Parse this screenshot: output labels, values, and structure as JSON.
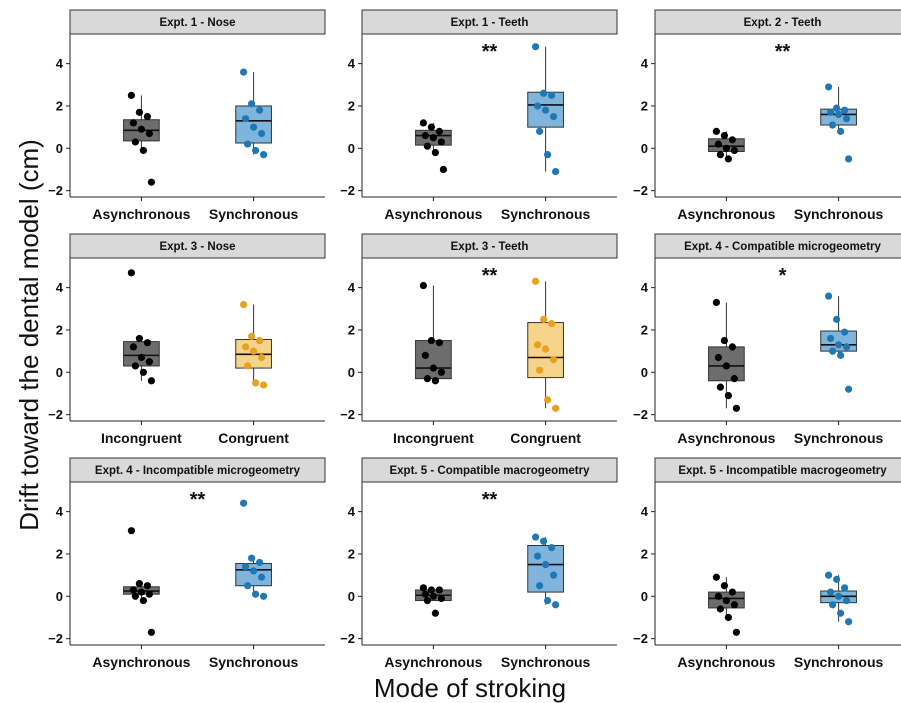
{
  "figure": {
    "ylabel": "Drift toward the dental model (cm)",
    "xlabel": "Mode of stroking"
  },
  "colors": {
    "control_box": "#6d6d6d",
    "control_point": "#000000",
    "sync_box": "#7fb5dc",
    "sync_point": "#1f78b4",
    "congruent_box": "#f5d48a",
    "congruent_point": "#e8a020",
    "strip_fill": "#d9d9d9"
  },
  "chart_data": [
    {
      "type": "box",
      "title": "Expt. 1 - Nose",
      "significance": "",
      "yticks": [
        -2,
        0,
        2,
        4
      ],
      "ylim": [
        -2.3,
        5.4
      ],
      "categories": [
        "Asynchronous",
        "Synchronous"
      ],
      "series": [
        {
          "name": "Asynchronous",
          "color": "control",
          "box": {
            "min": -0.1,
            "q1": 0.35,
            "median": 0.85,
            "q3": 1.35,
            "max": 2.5
          },
          "points": [
            2.5,
            1.7,
            1.5,
            1.2,
            0.9,
            0.7,
            0.3,
            -0.1,
            -1.6
          ]
        },
        {
          "name": "Synchronous",
          "color": "sync",
          "box": {
            "min": -0.3,
            "q1": 0.25,
            "median": 1.3,
            "q3": 2.0,
            "max": 3.6
          },
          "points": [
            3.6,
            2.1,
            1.8,
            1.4,
            1.0,
            0.7,
            0.2,
            -0.1,
            -0.3
          ]
        }
      ]
    },
    {
      "type": "box",
      "title": "Expt. 1 - Teeth",
      "significance": "**",
      "yticks": [
        -2,
        0,
        2,
        4
      ],
      "ylim": [
        -2.3,
        5.4
      ],
      "categories": [
        "Asynchronous",
        "Synchronous"
      ],
      "series": [
        {
          "name": "Asynchronous",
          "color": "control",
          "box": {
            "min": -0.2,
            "q1": 0.15,
            "median": 0.6,
            "q3": 0.85,
            "max": 1.2
          },
          "points": [
            1.2,
            1.0,
            0.8,
            0.6,
            0.5,
            0.3,
            0.1,
            -0.2,
            -1.0
          ]
        },
        {
          "name": "Synchronous",
          "color": "sync",
          "box": {
            "min": -1.1,
            "q1": 1.0,
            "median": 2.05,
            "q3": 2.65,
            "max": 4.8
          },
          "points": [
            4.8,
            2.6,
            2.5,
            2.0,
            1.8,
            1.5,
            0.8,
            -0.3,
            -1.1
          ]
        }
      ]
    },
    {
      "type": "box",
      "title": "Expt. 2 - Teeth",
      "significance": "**",
      "yticks": [
        -2,
        0,
        2,
        4
      ],
      "ylim": [
        -2.3,
        5.4
      ],
      "categories": [
        "Asynchronous",
        "Synchronous"
      ],
      "series": [
        {
          "name": "Asynchronous",
          "color": "control",
          "box": {
            "min": -0.5,
            "q1": -0.15,
            "median": 0.1,
            "q3": 0.45,
            "max": 0.8
          },
          "points": [
            0.8,
            0.6,
            0.4,
            0.2,
            0.0,
            -0.1,
            -0.3,
            -0.5
          ]
        },
        {
          "name": "Synchronous",
          "color": "sync",
          "box": {
            "min": 0.8,
            "q1": 1.1,
            "median": 1.6,
            "q3": 1.85,
            "max": 2.9
          },
          "points": [
            2.9,
            1.9,
            1.8,
            1.7,
            1.6,
            1.4,
            1.1,
            0.8,
            -0.5
          ]
        }
      ]
    },
    {
      "type": "box",
      "title": "Expt. 3 - Nose",
      "significance": "",
      "yticks": [
        -2,
        0,
        2,
        4
      ],
      "ylim": [
        -2.3,
        5.4
      ],
      "categories": [
        "Incongruent",
        "Congruent"
      ],
      "series": [
        {
          "name": "Incongruent",
          "color": "control",
          "box": {
            "min": -0.4,
            "q1": 0.3,
            "median": 0.8,
            "q3": 1.45,
            "max": 1.6
          },
          "points": [
            4.7,
            1.6,
            1.4,
            1.2,
            0.7,
            0.5,
            0.3,
            0.0,
            -0.4
          ]
        },
        {
          "name": "Congruent",
          "color": "congruent",
          "box": {
            "min": -0.6,
            "q1": 0.2,
            "median": 0.85,
            "q3": 1.55,
            "max": 3.2
          },
          "points": [
            3.2,
            1.7,
            1.5,
            1.2,
            1.0,
            0.7,
            0.3,
            -0.5,
            -0.6
          ]
        }
      ]
    },
    {
      "type": "box",
      "title": "Expt. 3 - Teeth",
      "significance": "**",
      "yticks": [
        -2,
        0,
        2,
        4
      ],
      "ylim": [
        -2.3,
        5.4
      ],
      "categories": [
        "Incongruent",
        "Congruent"
      ],
      "series": [
        {
          "name": "Incongruent",
          "color": "control",
          "box": {
            "min": -0.4,
            "q1": -0.3,
            "median": 0.2,
            "q3": 1.5,
            "max": 4.1
          },
          "points": [
            4.1,
            1.5,
            1.4,
            0.8,
            0.2,
            0.0,
            -0.3,
            -0.4
          ]
        },
        {
          "name": "Congruent",
          "color": "congruent",
          "box": {
            "min": -1.7,
            "q1": -0.25,
            "median": 0.7,
            "q3": 2.35,
            "max": 4.3
          },
          "points": [
            4.3,
            2.5,
            2.3,
            1.3,
            1.1,
            0.6,
            0.1,
            -1.3,
            -1.7
          ]
        }
      ]
    },
    {
      "type": "box",
      "title": "Expt. 4 - Compatible microgeometry",
      "significance": "*",
      "yticks": [
        -2,
        0,
        2,
        4
      ],
      "ylim": [
        -2.3,
        5.4
      ],
      "categories": [
        "Asynchronous",
        "Synchronous"
      ],
      "series": [
        {
          "name": "Asynchronous",
          "color": "control",
          "box": {
            "min": -1.7,
            "q1": -0.4,
            "median": 0.3,
            "q3": 1.2,
            "max": 3.3
          },
          "points": [
            3.3,
            1.5,
            1.2,
            0.7,
            0.3,
            -0.3,
            -0.7,
            -1.1,
            -1.7
          ]
        },
        {
          "name": "Synchronous",
          "color": "sync",
          "box": {
            "min": 0.8,
            "q1": 1.0,
            "median": 1.3,
            "q3": 1.95,
            "max": 3.6
          },
          "points": [
            3.6,
            2.5,
            1.9,
            1.6,
            1.3,
            1.2,
            1.0,
            0.8,
            -0.8
          ]
        }
      ]
    },
    {
      "type": "box",
      "title": "Expt. 4 - Incompatible microgeometry",
      "significance": "**",
      "yticks": [
        -2,
        0,
        2,
        4
      ],
      "ylim": [
        -2.3,
        5.4
      ],
      "categories": [
        "Asynchronous",
        "Synchronous"
      ],
      "series": [
        {
          "name": "Asynchronous",
          "color": "control",
          "box": {
            "min": -0.2,
            "q1": 0.1,
            "median": 0.25,
            "q3": 0.45,
            "max": 0.6
          },
          "points": [
            3.1,
            0.6,
            0.5,
            0.3,
            0.2,
            0.1,
            0.0,
            -0.2,
            -1.7
          ]
        },
        {
          "name": "Synchronous",
          "color": "sync",
          "box": {
            "min": 0.0,
            "q1": 0.5,
            "median": 1.25,
            "q3": 1.55,
            "max": 1.8
          },
          "points": [
            4.4,
            1.8,
            1.6,
            1.4,
            1.2,
            0.9,
            0.5,
            0.1,
            0.0
          ]
        }
      ]
    },
    {
      "type": "box",
      "title": "Expt. 5 - Compatible macrogeometry",
      "significance": "**",
      "yticks": [
        -2,
        0,
        2,
        4
      ],
      "ylim": [
        -2.3,
        5.4
      ],
      "categories": [
        "Asynchronous",
        "Synchronous"
      ],
      "series": [
        {
          "name": "Asynchronous",
          "color": "control",
          "box": {
            "min": -0.2,
            "q1": -0.2,
            "median": 0.05,
            "q3": 0.3,
            "max": 0.4
          },
          "points": [
            0.4,
            0.3,
            0.3,
            0.1,
            0.0,
            -0.1,
            -0.2,
            -0.8
          ]
        },
        {
          "name": "Synchronous",
          "color": "sync",
          "box": {
            "min": -0.4,
            "q1": 0.2,
            "median": 1.5,
            "q3": 2.4,
            "max": 2.8
          },
          "points": [
            2.8,
            2.6,
            2.3,
            1.9,
            1.5,
            1.0,
            0.5,
            -0.2,
            -0.4
          ]
        }
      ]
    },
    {
      "type": "box",
      "title": "Expt. 5 - Incompatible macrogeometry",
      "significance": "",
      "yticks": [
        -2,
        0,
        2,
        4
      ],
      "ylim": [
        -2.3,
        5.4
      ],
      "categories": [
        "Asynchronous",
        "Synchronous"
      ],
      "series": [
        {
          "name": "Asynchronous",
          "color": "control",
          "box": {
            "min": -1.0,
            "q1": -0.55,
            "median": -0.1,
            "q3": 0.2,
            "max": 0.9
          },
          "points": [
            0.9,
            0.5,
            0.2,
            0.0,
            -0.2,
            -0.4,
            -0.6,
            -1.0,
            -1.7
          ]
        },
        {
          "name": "Synchronous",
          "color": "sync",
          "box": {
            "min": -1.2,
            "q1": -0.3,
            "median": 0.0,
            "q3": 0.25,
            "max": 1.0
          },
          "points": [
            1.0,
            0.8,
            0.4,
            0.2,
            0.0,
            -0.2,
            -0.4,
            -0.8,
            -1.2
          ]
        }
      ]
    }
  ]
}
